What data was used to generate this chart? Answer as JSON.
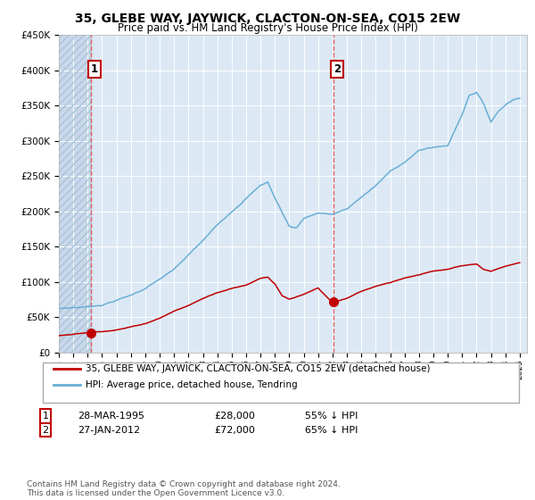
{
  "title": "35, GLEBE WAY, JAYWICK, CLACTON-ON-SEA, CO15 2EW",
  "subtitle": "Price paid vs. HM Land Registry's House Price Index (HPI)",
  "legend_line1": "35, GLEBE WAY, JAYWICK, CLACTON-ON-SEA, CO15 2EW (detached house)",
  "legend_line2": "HPI: Average price, detached house, Tendring",
  "annotation1_date": "28-MAR-1995",
  "annotation1_price": "£28,000",
  "annotation1_pct": "55% ↓ HPI",
  "annotation2_date": "27-JAN-2012",
  "annotation2_price": "£72,000",
  "annotation2_pct": "65% ↓ HPI",
  "footer": "Contains HM Land Registry data © Crown copyright and database right 2024.\nThis data is licensed under the Open Government Licence v3.0.",
  "hpi_color": "#6aaed6",
  "price_color": "#c00000",
  "vline_color": "#e06060",
  "dot_color": "#c00000",
  "bg_color": "#dce9f5",
  "hatch_color": "#c8d8ea",
  "ylim": [
    0,
    450000
  ],
  "yticks": [
    0,
    50000,
    100000,
    150000,
    200000,
    250000,
    300000,
    350000,
    400000,
    450000
  ],
  "sale1_x": 1995.24,
  "sale1_y": 28000,
  "sale2_x": 2012.07,
  "sale2_y": 72000,
  "xmin": 1993.0,
  "xmax": 2025.5,
  "hpi_anchors_x": [
    1993,
    1995,
    1996,
    1997,
    1998,
    1999,
    2000,
    2001,
    2002,
    2003,
    2004,
    2005,
    2006,
    2007,
    2007.5,
    2008,
    2009,
    2009.5,
    2010,
    2011,
    2012,
    2013,
    2014,
    2015,
    2016,
    2017,
    2018,
    2019,
    2020,
    2021,
    2021.5,
    2022,
    2022.5,
    2023,
    2023.5,
    2024,
    2024.5,
    2025
  ],
  "hpi_anchors_y": [
    62000,
    65000,
    68000,
    75000,
    82000,
    92000,
    105000,
    118000,
    138000,
    158000,
    180000,
    200000,
    220000,
    238000,
    243000,
    220000,
    180000,
    178000,
    192000,
    200000,
    198000,
    205000,
    222000,
    238000,
    258000,
    272000,
    288000,
    293000,
    295000,
    340000,
    368000,
    372000,
    355000,
    330000,
    345000,
    355000,
    362000,
    365000
  ],
  "price_anchors_x": [
    1993,
    1994,
    1995,
    1996,
    1997,
    1998,
    1999,
    2000,
    2001,
    2002,
    2003,
    2004,
    2005,
    2006,
    2007,
    2007.5,
    2008,
    2008.5,
    2009,
    2010,
    2011,
    2012,
    2013,
    2014,
    2015,
    2016,
    2017,
    2018,
    2019,
    2020,
    2021,
    2022,
    2022.5,
    2023,
    2024,
    2025
  ],
  "price_anchors_y": [
    24000,
    26000,
    28000,
    30000,
    33000,
    37000,
    42000,
    50000,
    60000,
    68000,
    78000,
    87000,
    93000,
    98000,
    108000,
    110000,
    100000,
    83000,
    78000,
    84000,
    93000,
    72000,
    78000,
    88000,
    95000,
    100000,
    107000,
    112000,
    118000,
    120000,
    125000,
    128000,
    120000,
    118000,
    125000,
    130000
  ]
}
